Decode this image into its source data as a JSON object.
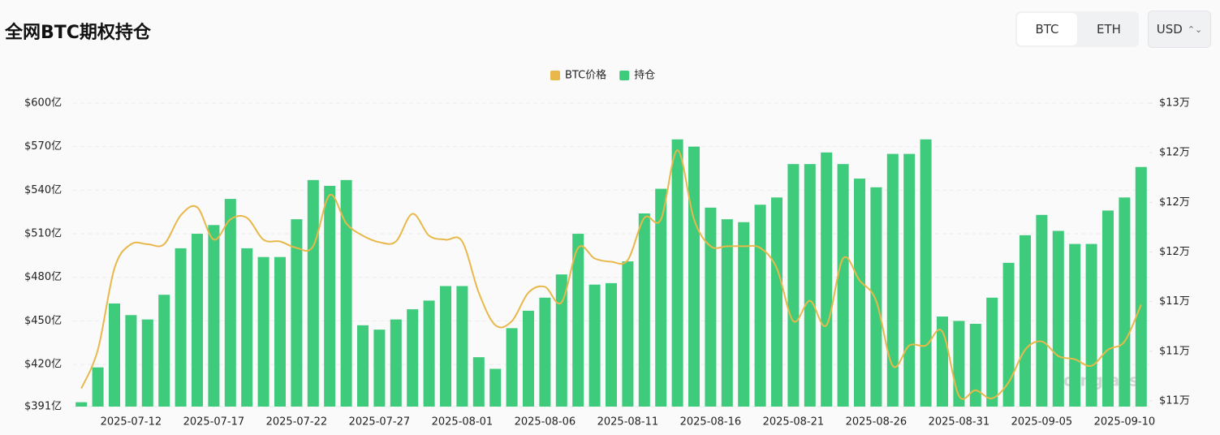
{
  "header": {
    "title": "全网BTC期权持仓",
    "tabs": [
      "BTC",
      "ETH"
    ],
    "currency": "USD"
  },
  "chart_data": {
    "type": "bar-line",
    "watermark": "coinglass",
    "categories": [
      null,
      null,
      null,
      "2025-07-12",
      null,
      null,
      null,
      null,
      "2025-07-17",
      null,
      null,
      null,
      null,
      "2025-07-22",
      null,
      null,
      null,
      null,
      "2025-07-27",
      null,
      null,
      null,
      null,
      "2025-08-01",
      null,
      null,
      null,
      null,
      "2025-08-06",
      null,
      null,
      null,
      null,
      "2025-08-11",
      null,
      null,
      null,
      null,
      "2025-08-16",
      null,
      null,
      null,
      null,
      "2025-08-21",
      null,
      null,
      null,
      null,
      "2025-08-26",
      null,
      null,
      null,
      null,
      "2025-08-31",
      null,
      null,
      null,
      null,
      "2025-09-05",
      null,
      null,
      null,
      null,
      "2025-09-10",
      null
    ],
    "series": [
      {
        "name": "BTC价格",
        "color": "#e8b84a",
        "axis": "y2",
        "kind": "line",
        "values": [
          108800,
          111300,
          116550,
          118100,
          118100,
          118100,
          119960,
          120480,
          118390,
          119700,
          119800,
          118390,
          118280,
          117860,
          117970,
          121270,
          119440,
          118650,
          118230,
          118280,
          120060,
          118650,
          118390,
          118280,
          114980,
          112880,
          113140,
          114980,
          115350,
          114350,
          117860,
          117180,
          116970,
          117080,
          119800,
          119700,
          124160,
          119700,
          117970,
          117970,
          117970,
          117860,
          116550,
          113140,
          114450,
          112880,
          117180,
          115760,
          114450,
          110260,
          111570,
          111570,
          112460,
          108320,
          108680,
          108160,
          109200,
          111300,
          111830,
          110890,
          110680,
          110260,
          111300,
          111830,
          114200
        ]
      },
      {
        "name": "持仓",
        "color": "#3fcb7c",
        "kind": "bar",
        "values": [
          394,
          418,
          462,
          454,
          451,
          468,
          500,
          510,
          516,
          534,
          500,
          494,
          494,
          520,
          547,
          543,
          547,
          447,
          444,
          451,
          458,
          464,
          474,
          474,
          425,
          417,
          445,
          457,
          466,
          482,
          510,
          475,
          476,
          491,
          524,
          541,
          575,
          570,
          528,
          520,
          518,
          530,
          535,
          558,
          558,
          566,
          558,
          548,
          542,
          565,
          565,
          575,
          453,
          450,
          448,
          466,
          490,
          509,
          523,
          512,
          503,
          503,
          526,
          535,
          556
        ]
      }
    ],
    "ylim": [
      391,
      600
    ],
    "yticks": [
      {
        "value": 391,
        "label": "$391亿"
      },
      {
        "value": 420,
        "label": "$420亿"
      },
      {
        "value": 450,
        "label": "$450亿"
      },
      {
        "value": 480,
        "label": "$480亿"
      },
      {
        "value": 510,
        "label": "$510亿"
      },
      {
        "value": 540,
        "label": "$540亿"
      },
      {
        "value": 570,
        "label": "$570亿"
      },
      {
        "value": 600,
        "label": "$600亿"
      }
    ],
    "y2lim": [
      107630,
      127200
    ],
    "y2ticks": [
      {
        "value": 108000,
        "label": "$11万"
      },
      {
        "value": 111200,
        "label": "$11万"
      },
      {
        "value": 114400,
        "label": "$11万"
      },
      {
        "value": 117600,
        "label": "$12万"
      },
      {
        "value": 120800,
        "label": "$12万"
      },
      {
        "value": 124000,
        "label": "$12万"
      },
      {
        "value": 127200,
        "label": "$13万"
      }
    ],
    "grid": true,
    "legend": "top"
  }
}
